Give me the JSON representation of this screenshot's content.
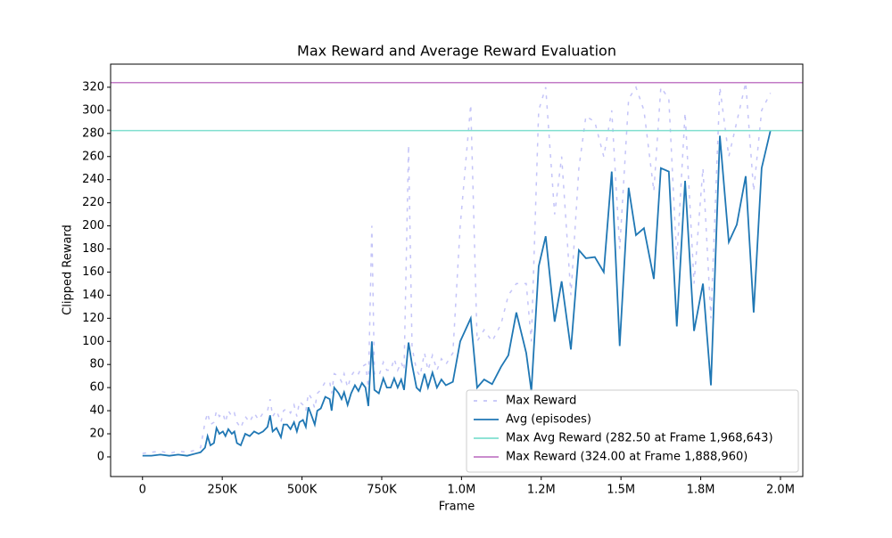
{
  "chart_data": {
    "type": "line",
    "title": "Max Reward and Average Reward Evaluation",
    "xlabel": "Frame",
    "ylabel": "Clipped Reward",
    "x": [
      0,
      28000,
      56000,
      84000,
      112000,
      140000,
      168000,
      182000,
      196000,
      204000,
      213000,
      224000,
      232000,
      241000,
      252000,
      260000,
      269000,
      280000,
      288000,
      296000,
      308000,
      322000,
      336000,
      350000,
      364000,
      378000,
      392000,
      400000,
      408000,
      420000,
      434000,
      442000,
      453000,
      464000,
      475000,
      484000,
      492000,
      503000,
      512000,
      520000,
      531000,
      540000,
      548000,
      559000,
      573000,
      587000,
      593000,
      601000,
      615000,
      624000,
      632000,
      643000,
      654000,
      666000,
      677000,
      688000,
      699000,
      708000,
      719000,
      727000,
      741000,
      755000,
      766000,
      778000,
      789000,
      800000,
      811000,
      820000,
      834000,
      845000,
      859000,
      870000,
      884000,
      895000,
      909000,
      923000,
      937000,
      951000,
      973000,
      996000,
      1029000,
      1049000,
      1071000,
      1096000,
      1124000,
      1147000,
      1172000,
      1203000,
      1219000,
      1242000,
      1264000,
      1292000,
      1314000,
      1343000,
      1368000,
      1390000,
      1418000,
      1446000,
      1471000,
      1496000,
      1524000,
      1547000,
      1572000,
      1603000,
      1625000,
      1650000,
      1675000,
      1701000,
      1729000,
      1757000,
      1782000,
      1810000,
      1838000,
      1863000,
      1891000,
      1916000,
      1941000,
      1968643
    ],
    "series": [
      {
        "name": "Max Reward",
        "color": "#c4c4f8",
        "dashed": true,
        "values": [
          3,
          4,
          5,
          3,
          5,
          4,
          6,
          8,
          30,
          38,
          28,
          30,
          40,
          35,
          38,
          30,
          40,
          35,
          38,
          30,
          25,
          35,
          30,
          38,
          32,
          38,
          40,
          50,
          35,
          40,
          30,
          40,
          42,
          38,
          45,
          35,
          48,
          45,
          40,
          55,
          50,
          42,
          55,
          58,
          65,
          65,
          55,
          72,
          70,
          65,
          72,
          60,
          70,
          75,
          72,
          78,
          80,
          60,
          200,
          72,
          70,
          82,
          75,
          75,
          85,
          75,
          82,
          75,
          270,
          95,
          75,
          70,
          90,
          75,
          88,
          75,
          85,
          80,
          90,
          200,
          305,
          100,
          110,
          100,
          115,
          140,
          150,
          150,
          100,
          300,
          320,
          210,
          260,
          140,
          250,
          295,
          290,
          260,
          300,
          180,
          310,
          320,
          300,
          230,
          320,
          310,
          170,
          298,
          150,
          250,
          120,
          320,
          260,
          290,
          324,
          230,
          300,
          315
        ]
      },
      {
        "name": "Avg (episodes)",
        "color": "#1f77b4",
        "dashed": false,
        "values": [
          1,
          1,
          2,
          1,
          2,
          1,
          3,
          4,
          8,
          18,
          10,
          12,
          25,
          20,
          22,
          18,
          24,
          20,
          22,
          12,
          10,
          20,
          18,
          22,
          20,
          22,
          26,
          36,
          22,
          25,
          17,
          28,
          28,
          24,
          30,
          22,
          30,
          32,
          26,
          43,
          35,
          28,
          40,
          42,
          52,
          50,
          40,
          60,
          55,
          50,
          56,
          45,
          55,
          62,
          57,
          64,
          60,
          44,
          100,
          58,
          55,
          68,
          60,
          60,
          68,
          60,
          67,
          58,
          99,
          80,
          60,
          57,
          72,
          60,
          73,
          60,
          67,
          62,
          65,
          100,
          120,
          60,
          67,
          63,
          78,
          88,
          125,
          90,
          57,
          165,
          191,
          117,
          152,
          93,
          179,
          172,
          173,
          160,
          247,
          96,
          233,
          192,
          198,
          154,
          250,
          247,
          113,
          239,
          109,
          150,
          62,
          278,
          186,
          201,
          243,
          125,
          250,
          282.5
        ]
      }
    ],
    "hlines": [
      {
        "name": "Max Avg Reward (282.50 at Frame 1,968,643)",
        "value": 282.5,
        "color": "#7fdfcf"
      },
      {
        "name": "Max Reward (324.00 at Frame 1,888,960)",
        "value": 324,
        "color": "#c27bc6"
      }
    ],
    "xlim": [
      -100000,
      2070000
    ],
    "ylim": [
      -17,
      340
    ],
    "xticks": [
      0,
      {
        "value": 250000,
        "label": "250K"
      },
      {
        "value": 500000,
        "label": "500K"
      },
      {
        "value": 750000,
        "label": "750K"
      },
      {
        "value": 1000000,
        "label": "1.0M"
      },
      {
        "value": 1250000,
        "label": "1.2M"
      },
      {
        "value": 1500000,
        "label": "1.5M"
      },
      {
        "value": 1750000,
        "label": "1.8M"
      },
      {
        "value": 2000000,
        "label": "2.0M"
      }
    ],
    "yticks": [
      0,
      20,
      40,
      60,
      80,
      100,
      120,
      140,
      160,
      180,
      200,
      220,
      240,
      260,
      280,
      300,
      320
    ],
    "legend": "lower right"
  }
}
